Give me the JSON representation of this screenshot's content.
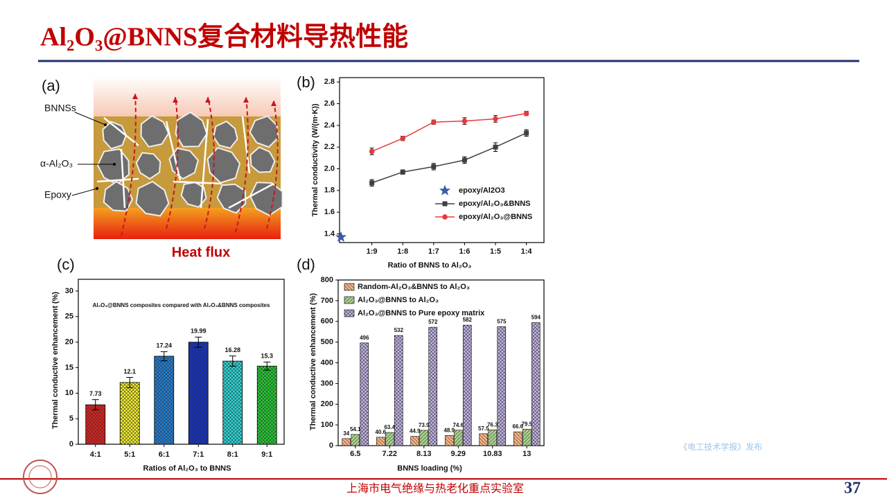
{
  "slide": {
    "title": "Al₂O₃@BNNS复合材料导热性能",
    "footer": "上海市电气绝缘与热老化重点实验室",
    "page_number": "37",
    "watermark": "《电工技术学报》发布"
  },
  "figure_a": {
    "panel_label": "(a)",
    "labels": [
      "BNNSs",
      "α-Al₂O₃",
      "Epoxy"
    ],
    "caption": "Heat flux"
  },
  "chart_data": [
    {
      "panel_label": "(b)",
      "type": "line",
      "x_label": "Ratio of  BNNS to Al₂O₃",
      "y_label": "Thermal conductivity (W/(m·K))",
      "categories": [
        null,
        "1:9",
        "1:8",
        "1:7",
        "1:6",
        "1:5",
        "1:4"
      ],
      "ylim": [
        1.32,
        2.84
      ],
      "yticks": [
        1.4,
        1.6,
        1.8,
        {
          "value": 2,
          "label": "2.0"
        },
        2.2,
        2.4,
        2.6,
        2.8
      ],
      "legend": "lower-right",
      "series": [
        {
          "name": "epoxy/Al2O3",
          "color": "#3a5ba8",
          "marker": "star",
          "values": [
            1.37,
            null,
            null,
            null,
            null,
            null,
            null
          ]
        },
        {
          "name": "epoxy/Al₂O₃&BNNS",
          "color": "#3f3f3f",
          "marker": "square",
          "values": [
            null,
            1.87,
            1.97,
            2.02,
            2.08,
            2.2,
            2.33
          ],
          "errors": [
            null,
            0.03,
            0.02,
            0.03,
            0.03,
            0.04,
            0.03
          ]
        },
        {
          "name": "epoxy/Al₂O₃@BNNS",
          "color": "#e8383d",
          "marker": "circle",
          "values": [
            null,
            2.16,
            2.28,
            2.43,
            2.44,
            2.46,
            2.51
          ],
          "errors": [
            null,
            0.03,
            0.02,
            0.02,
            0.03,
            0.03,
            0.02
          ]
        }
      ]
    },
    {
      "panel_label": "(c)",
      "type": "bar",
      "annotation": "Al₂O₃@BNNS composites compared with Al₂O₃&BNNS composites",
      "x_label": "Ratios of  Al₂O₃ to BNNS",
      "y_label": "Thermal conductive enhancement (%)",
      "categories": [
        "4:1",
        "5:1",
        "6:1",
        "7:1",
        "8:1",
        "9:1"
      ],
      "values": [
        7.73,
        12.1,
        17.24,
        19.99,
        16.28,
        15.3
      ],
      "errors": [
        1.0,
        1.0,
        0.9,
        1.0,
        1.0,
        0.8
      ],
      "colors": [
        "#e0211c",
        "#f2ee2a",
        "#1f7fd6",
        "#1230c8",
        "#2ad8d8",
        "#22cc30"
      ],
      "ylim": [
        0,
        32.3
      ],
      "yticks": [
        0,
        5,
        10,
        15,
        20,
        25,
        30
      ]
    },
    {
      "panel_label": "(d)",
      "type": "grouped_bar",
      "x_label": "BNNS loading (%)",
      "y_label": "Thermal conductive enhancement (%)",
      "categories": [
        "6.5",
        "7.22",
        "8.13",
        "9.29",
        "10.83",
        "13"
      ],
      "legend": "upper-left",
      "ylim": [
        0,
        800
      ],
      "yticks": [
        0,
        100,
        200,
        300,
        400,
        500,
        600,
        700,
        800
      ],
      "series": [
        {
          "name": "Random-Al₂O₃&BNNS to Al₂O₃",
          "color": "#f4b183",
          "values": [
            34,
            40.6,
            44.9,
            48.9,
            57.5,
            66.6
          ]
        },
        {
          "name": "Al₂O₃@BNNS to Al₂O₃",
          "color": "#a9d18e",
          "values": [
            54.1,
            63.4,
            73.9,
            74.6,
            76.3,
            79.5
          ]
        },
        {
          "name": "Al₂O₃@BNNS to Pure epoxy matrix",
          "color": "#c4b5e6",
          "values": [
            496,
            532,
            572,
            582,
            575,
            594
          ]
        }
      ]
    }
  ]
}
